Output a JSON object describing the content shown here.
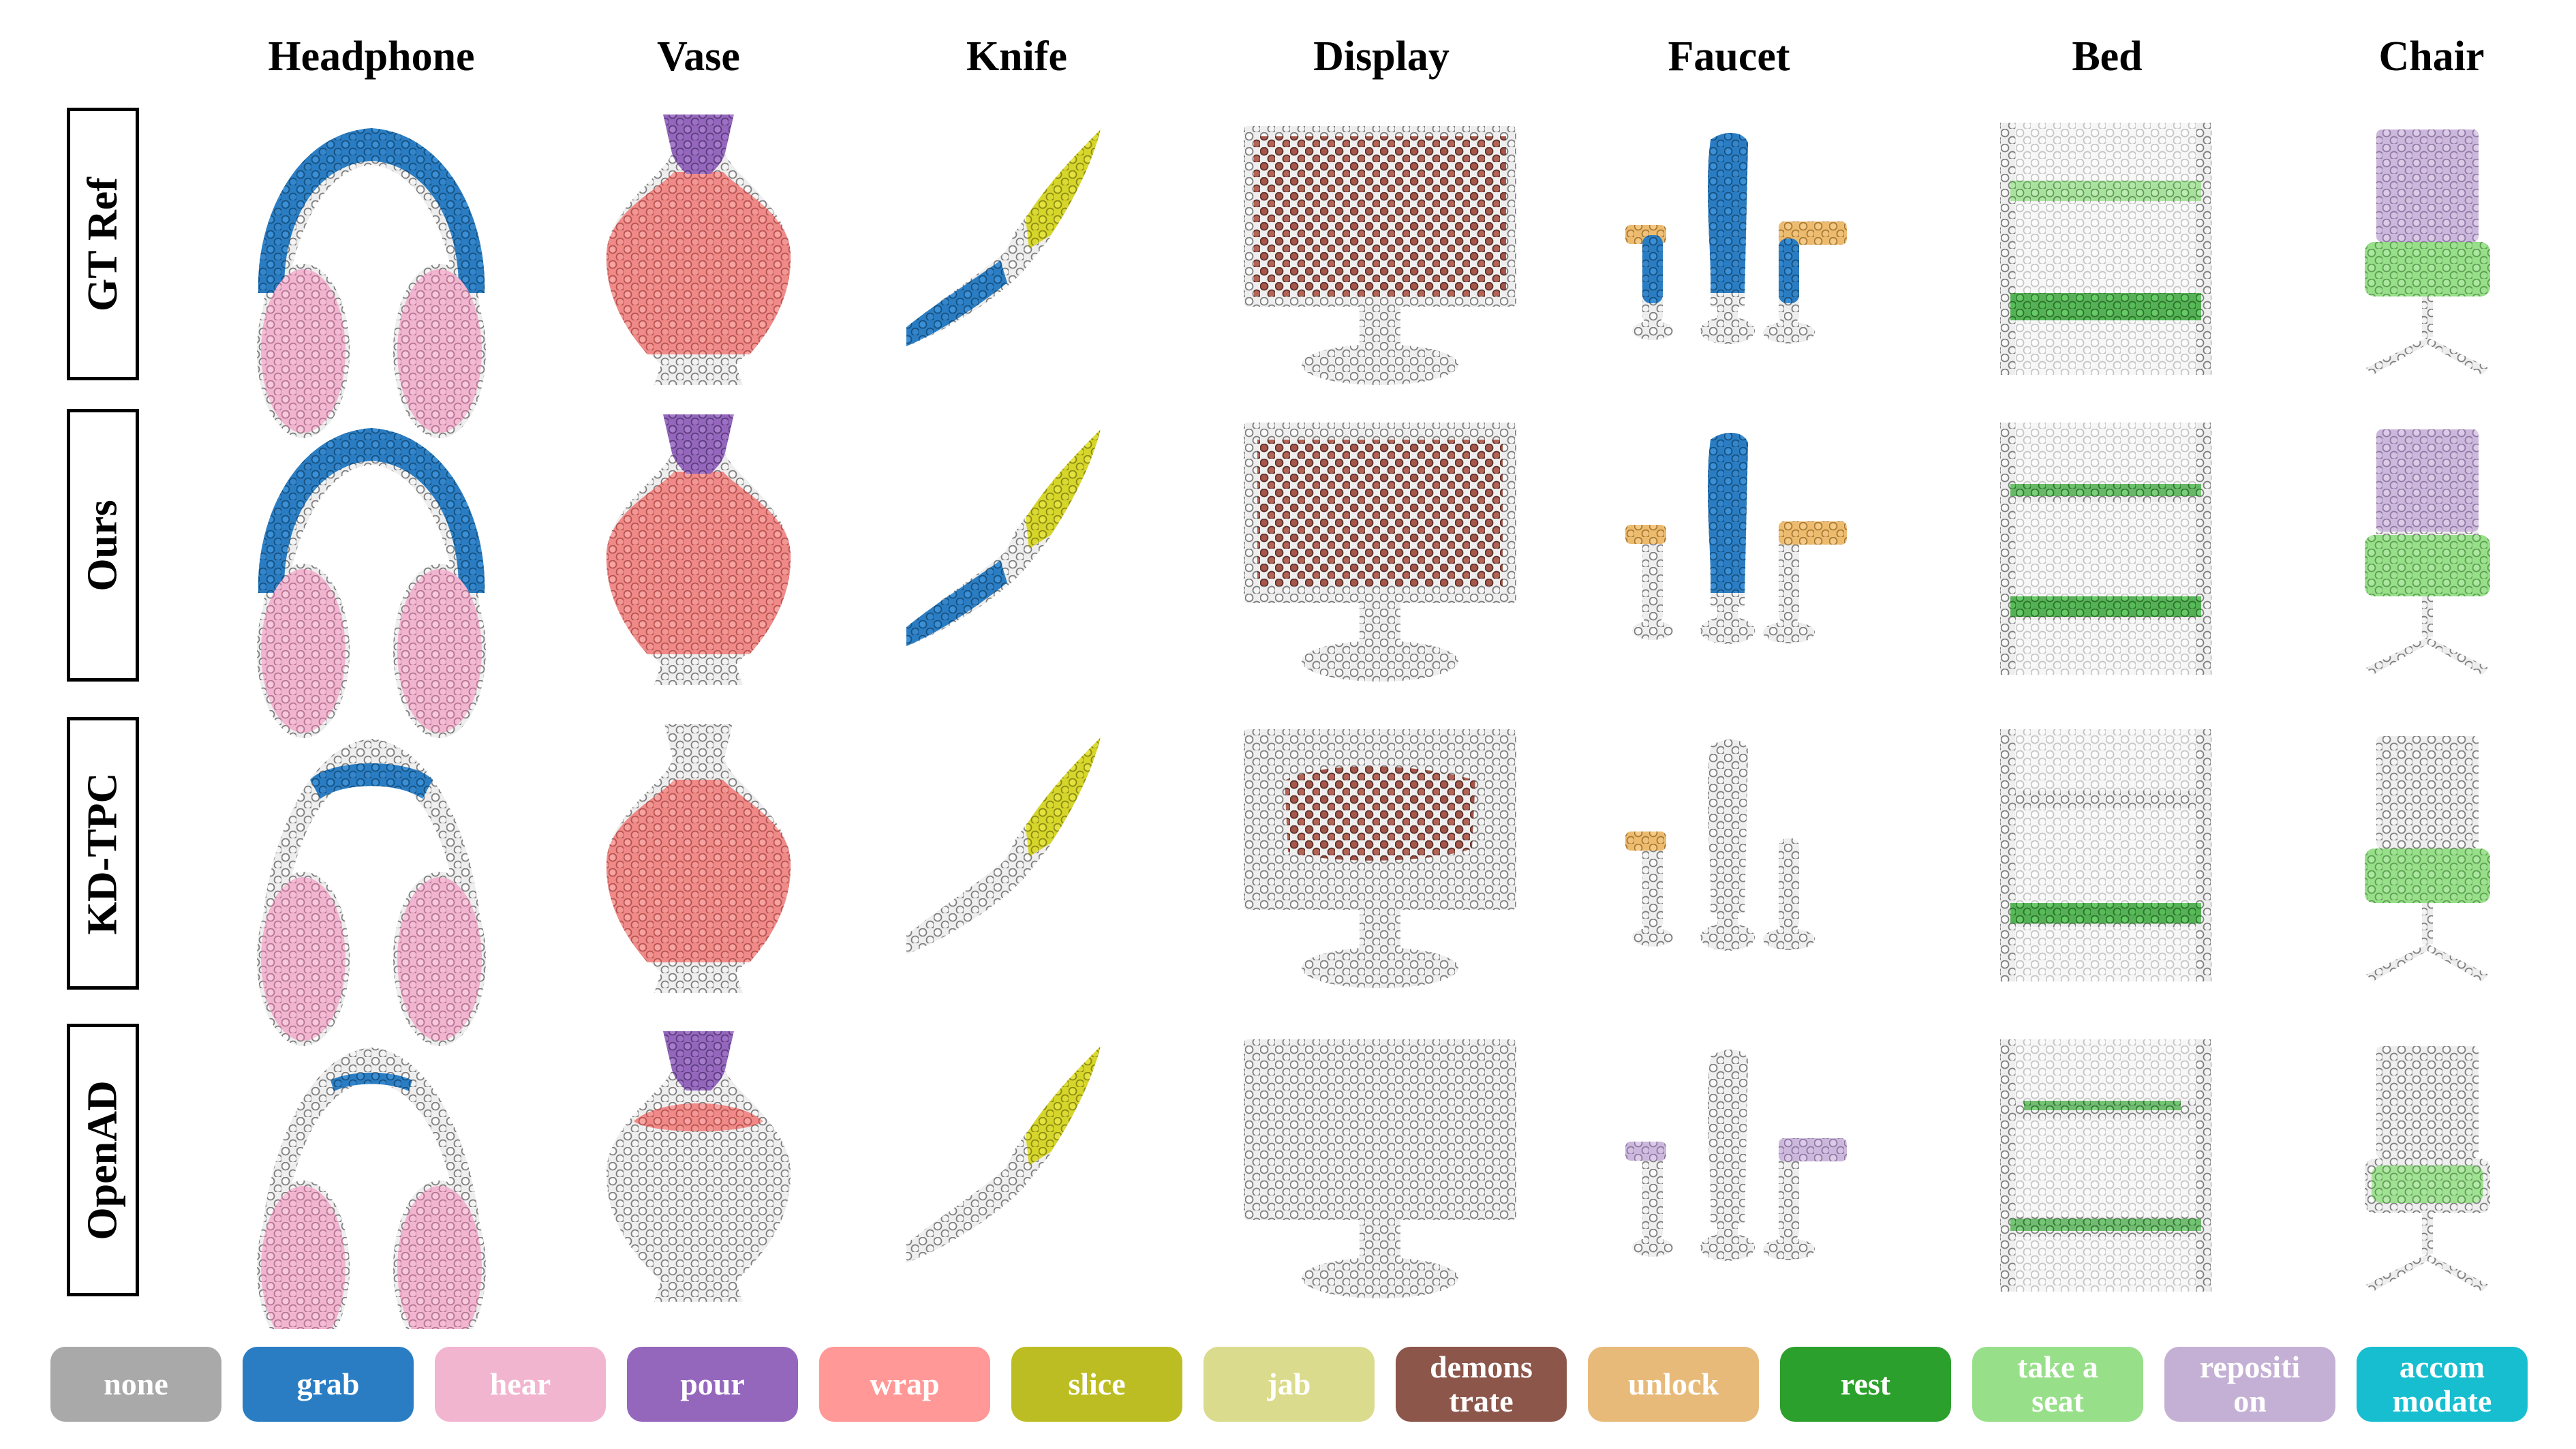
{
  "columns": [
    "Headphone",
    "Vase",
    "Knife",
    "Display",
    "Faucet",
    "Bed",
    "Chair"
  ],
  "rows": [
    "GT Ref",
    "Ours",
    "KD-TPC",
    "OpenAD"
  ],
  "legend": [
    {
      "label": "none",
      "color": "#A9A9A9"
    },
    {
      "label": "grab",
      "color": "#2A7DC3"
    },
    {
      "label": "hear",
      "color": "#F2B5D0"
    },
    {
      "label": "pour",
      "color": "#9467BD"
    },
    {
      "label": "wrap",
      "color": "#FF9896"
    },
    {
      "label": "slice",
      "color": "#BCBD22"
    },
    {
      "label": "jab",
      "color": "#DBDB8D"
    },
    {
      "label": "demons\ntrate",
      "color": "#8C564B"
    },
    {
      "label": "unlock",
      "color": "#E7BA7A"
    },
    {
      "label": "rest",
      "color": "#2CA02C"
    },
    {
      "label": "take a\nseat",
      "color": "#98DF8A"
    },
    {
      "label": "repositi\non",
      "color": "#C5B0D5"
    },
    {
      "label": "accom\nmodate",
      "color": "#17BECF"
    }
  ]
}
